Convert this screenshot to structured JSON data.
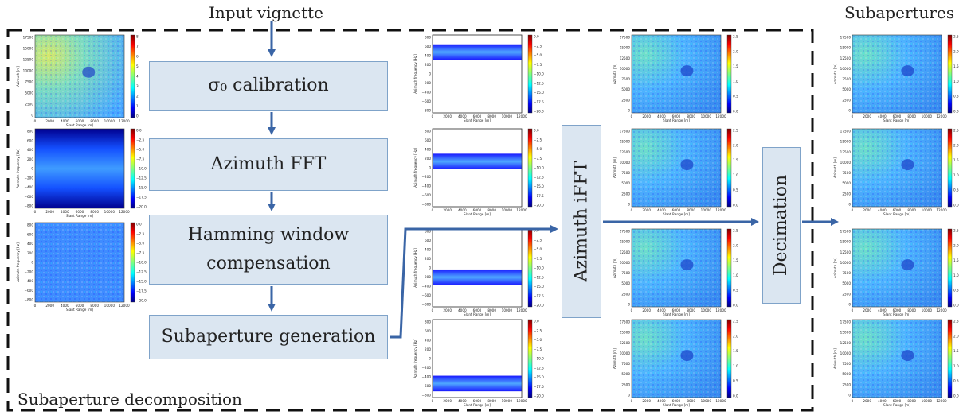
{
  "titles": {
    "input": "Input vignette",
    "subapertures": "Subapertures",
    "decomposition": "Subaperture decomposition"
  },
  "boxes": {
    "calibration": "σ₀ calibration",
    "fft": "Azimuth FFT",
    "hamming_1": "Hamming window",
    "hamming_2": "compensation",
    "generation": "Subaperture generation",
    "ifft": "Azimuth iFFT",
    "decimation": "Decimation"
  },
  "axis_labels": {
    "slant_range": "Slant Range [m]",
    "azimuth_m": "Azimuth [m]",
    "azimuth_freq": "Azimuth frequency [Hz]"
  },
  "ticks": {
    "x_range": [
      "0",
      "2000",
      "4000",
      "6000",
      "8000",
      "10000",
      "12000"
    ],
    "y_az_m": [
      "17500",
      "15000",
      "12500",
      "10000",
      "7500",
      "5000",
      "2500",
      "0"
    ],
    "y_freq": [
      "800",
      "600",
      "400",
      "200",
      "0",
      "−200",
      "−400",
      "−600",
      "−800"
    ],
    "y_freq_short": [
      "800",
      "600",
      "400",
      "200",
      "0",
      "−200",
      "−400",
      "−600",
      "−800"
    ],
    "cb_input": [
      "8",
      "7",
      "6",
      "5",
      "4",
      "3",
      "2",
      "1",
      "0"
    ],
    "cb_spectrum": [
      "0.0",
      "−2.5",
      "−5.0",
      "−7.5",
      "−10.0",
      "−12.5",
      "−15.0",
      "−17.5",
      "−20.0"
    ],
    "cb_sub": [
      "2.5",
      "2.0",
      "1.5",
      "1.0",
      "0.5",
      "0.0"
    ]
  },
  "colors": {
    "box_fill": "#dbe6f1",
    "box_border": "#7fa3c9",
    "arrow": "#3a65a6",
    "dash": "#111111"
  },
  "colormap": "jet"
}
